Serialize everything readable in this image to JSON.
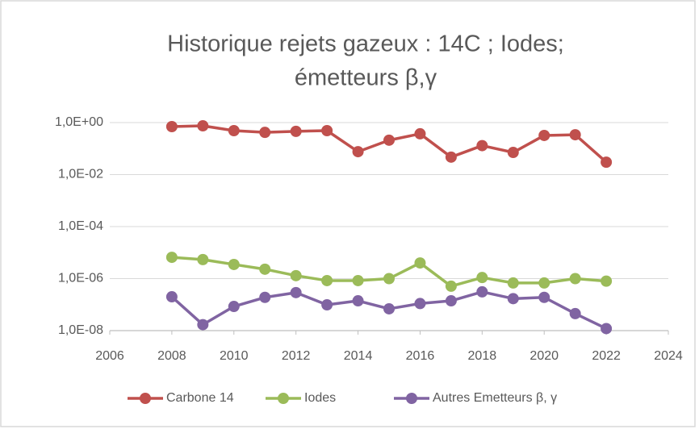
{
  "chart_data": {
    "type": "line",
    "title": [
      "Historique rejets gazeux : 14C ; Iodes;",
      "émetteurs β,γ"
    ],
    "x": [
      2008,
      2009,
      2010,
      2011,
      2012,
      2013,
      2014,
      2015,
      2016,
      2017,
      2018,
      2019,
      2020,
      2021,
      2022
    ],
    "series": [
      {
        "name": "Carbone 14",
        "color": "#c0504d",
        "values": [
          0.7,
          0.75,
          0.49,
          0.42,
          0.46,
          0.49,
          0.076,
          0.21,
          0.37,
          0.047,
          0.13,
          0.071,
          0.32,
          0.34,
          0.03
        ]
      },
      {
        "name": "Iodes",
        "color": "#9bbb59",
        "values": [
          6.6e-06,
          5.4e-06,
          3.5e-06,
          2.3e-06,
          1.3e-06,
          8.4e-07,
          8.4e-07,
          1e-06,
          4e-06,
          5.1e-07,
          1.1e-06,
          6.8e-07,
          6.8e-07,
          1e-06,
          8e-07
        ]
      },
      {
        "name": "Autres Emetteurs β, γ",
        "color": "#8064a2",
        "values": [
          2e-07,
          1.7e-08,
          8.5e-08,
          1.9e-07,
          2.9e-07,
          9.8e-08,
          1.4e-07,
          6.9e-08,
          1.1e-07,
          1.4e-07,
          3.1e-07,
          1.7e-07,
          1.9e-07,
          4.5e-08,
          1.2e-08
        ]
      }
    ],
    "xlim": [
      2006,
      2024
    ],
    "xticks": [
      2006,
      2008,
      2010,
      2012,
      2014,
      2016,
      2018,
      2020,
      2022,
      2024
    ],
    "ylim": [
      1e-08,
      1
    ],
    "yticks": [
      {
        "value": 1e-08,
        "label": "1,0E-08"
      },
      {
        "value": 1e-06,
        "label": "1,0E-06"
      },
      {
        "value": 0.0001,
        "label": "1,0E-04"
      },
      {
        "value": 0.01,
        "label": "1,0E-02"
      },
      {
        "value": 1,
        "label": "1,0E+00"
      }
    ],
    "y_log": true,
    "grid": true,
    "legend": "bottom"
  }
}
